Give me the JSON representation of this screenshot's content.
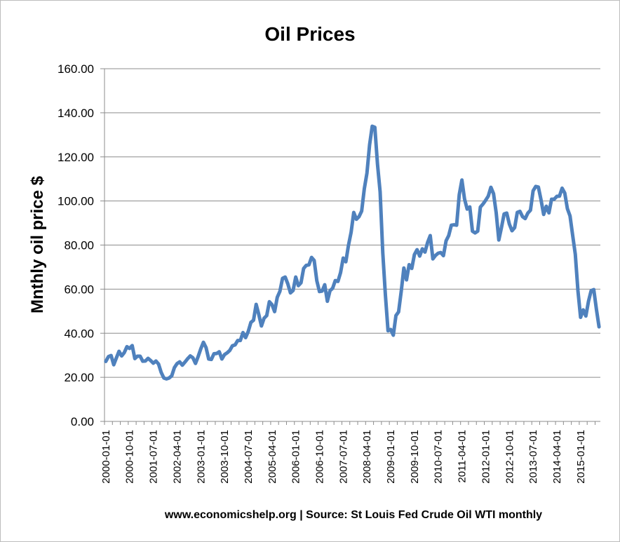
{
  "chart_data": {
    "type": "line",
    "title": "Oil Prices",
    "ylabel": "Mnthly oil price $",
    "xlabel": "",
    "source": "www.economicshelp.org | Source: St Louis Fed Crude Oil WTI monthly",
    "ylim": [
      0,
      160
    ],
    "yticks": [
      "0.00",
      "20.00",
      "40.00",
      "60.00",
      "80.00",
      "100.00",
      "120.00",
      "140.00",
      "160.00"
    ],
    "xticks": [
      "2000-01-01",
      "2000-10-01",
      "2001-07-01",
      "2002-04-01",
      "2003-01-01",
      "2003-10-01",
      "2004-07-01",
      "2005-04-01",
      "2006-01-01",
      "2006-10-01",
      "2007-07-01",
      "2008-04-01",
      "2009-01-01",
      "2009-10-01",
      "2010-07-01",
      "2011-04-01",
      "2012-01-01",
      "2012-10-01",
      "2013-07-01",
      "2014-04-01",
      "2015-01-01"
    ],
    "x_start": "2000-01-01",
    "x_frequency": "monthly",
    "grid": true,
    "line_color": "#4f81bd",
    "series": [
      {
        "values": [
          27.2,
          29.4,
          29.9,
          25.7,
          28.8,
          31.8,
          29.7,
          31.2,
          33.9,
          33.1,
          34.4,
          28.5,
          29.6,
          29.6,
          27.3,
          27.4,
          28.6,
          27.6,
          26.4,
          27.4,
          26.0,
          22.2,
          19.7,
          19.3,
          19.7,
          20.7,
          24.4,
          26.2,
          27.0,
          25.5,
          26.9,
          28.4,
          29.7,
          28.9,
          26.3,
          29.4,
          32.9,
          35.9,
          33.5,
          28.3,
          28.1,
          30.7,
          30.8,
          31.6,
          28.3,
          30.3,
          31.1,
          32.2,
          34.3,
          34.7,
          36.7,
          36.7,
          40.3,
          38.0,
          40.8,
          44.9,
          45.9,
          53.1,
          48.5,
          43.3,
          46.8,
          48.0,
          54.3,
          53.0,
          49.8,
          56.3,
          59.0,
          64.9,
          65.5,
          62.4,
          58.3,
          59.4,
          65.5,
          61.6,
          62.9,
          69.4,
          70.8,
          71.0,
          74.4,
          73.0,
          63.8,
          58.9,
          59.1,
          62.0,
          54.5,
          59.3,
          60.4,
          63.9,
          63.5,
          67.5,
          74.1,
          72.4,
          79.9,
          85.8,
          94.8,
          91.7,
          92.9,
          95.4,
          105.5,
          112.6,
          125.4,
          133.9,
          133.4,
          116.7,
          104.1,
          76.6,
          57.3,
          41.1,
          41.7,
          39.1,
          48.0,
          49.7,
          59.0,
          69.6,
          64.2,
          71.1,
          69.4,
          75.7,
          77.9,
          75.0,
          78.3,
          76.8,
          81.2,
          84.3,
          73.7,
          75.3,
          76.3,
          76.6,
          75.2,
          81.9,
          84.3,
          89.0,
          89.2,
          89.0,
          102.9,
          109.5,
          100.9,
          96.3,
          97.3,
          86.3,
          85.5,
          86.3,
          97.2,
          98.6,
          100.3,
          102.2,
          106.2,
          103.3,
          94.7,
          82.3,
          87.9,
          94.1,
          94.5,
          89.5,
          86.5,
          87.9,
          94.8,
          95.3,
          92.9,
          92.0,
          94.5,
          95.8,
          104.6,
          106.6,
          106.3,
          100.5,
          93.9,
          97.6,
          94.6,
          100.8,
          100.8,
          102.1,
          102.2,
          105.8,
          103.6,
          96.5,
          93.2,
          84.4,
          75.8,
          59.3,
          47.2,
          50.6,
          47.8,
          54.5,
          59.3,
          59.8,
          50.9,
          42.9
        ]
      }
    ]
  }
}
